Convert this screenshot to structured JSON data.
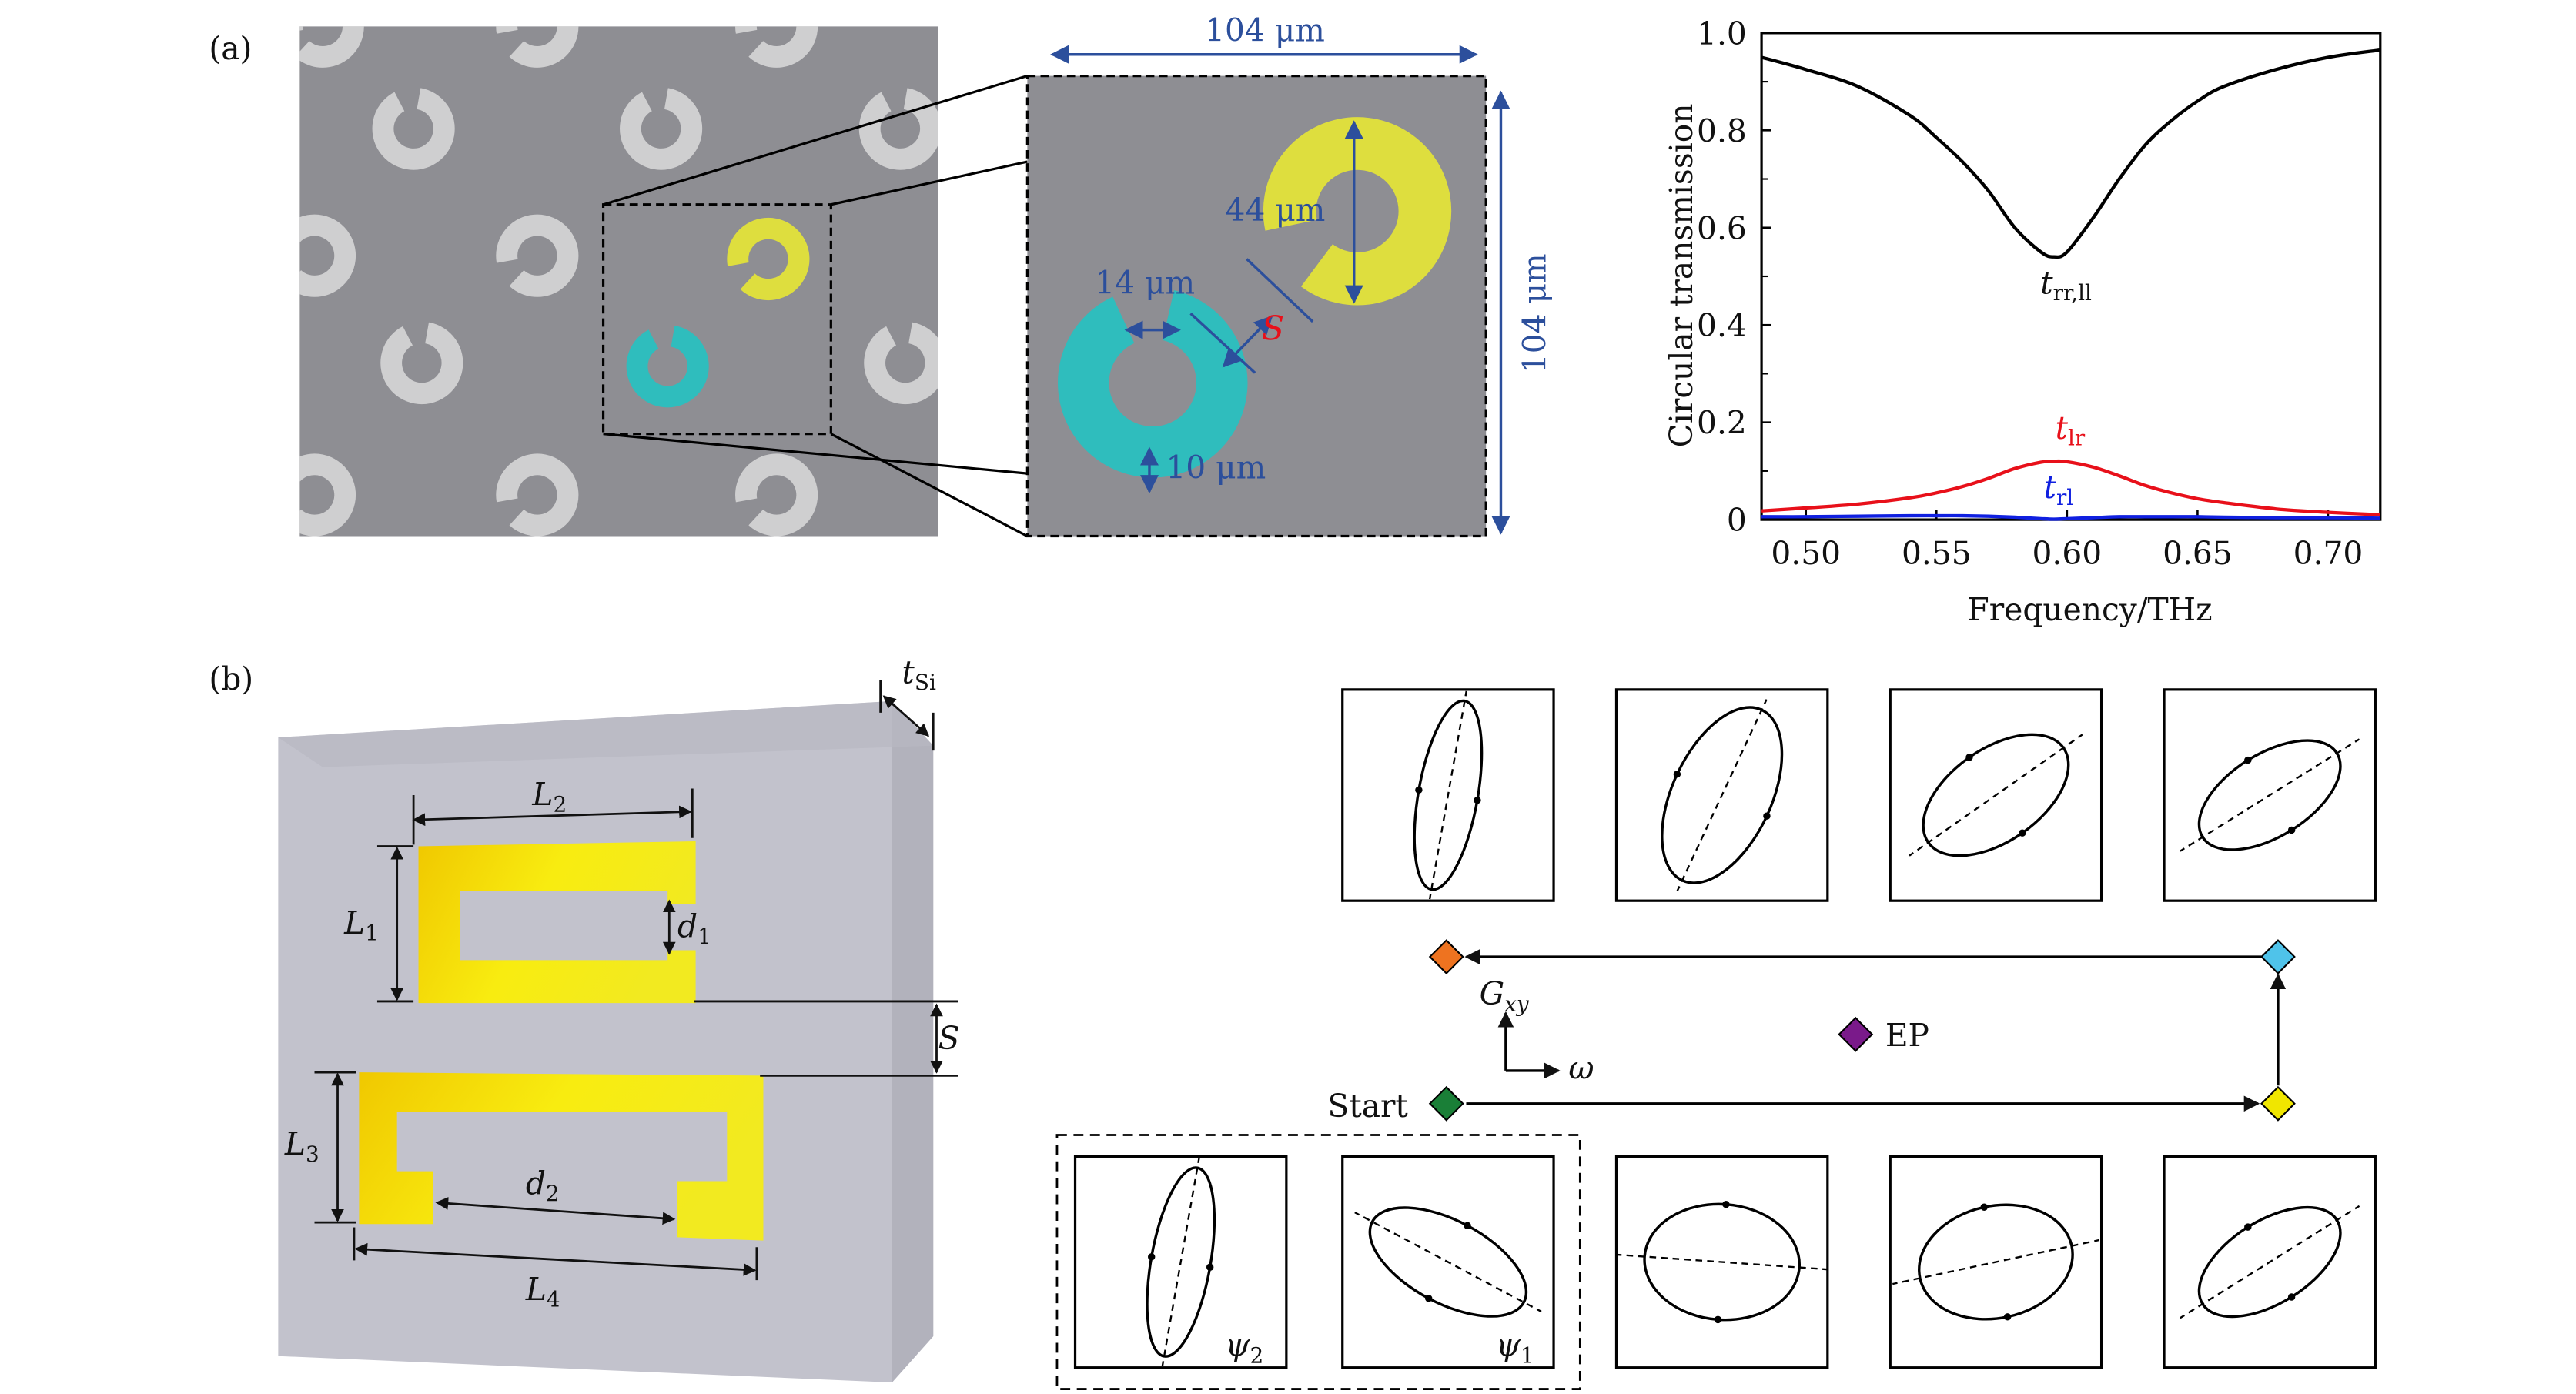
{
  "panel_a": {
    "label": "(a)",
    "width_label": "104 μm",
    "height_label": "104 μm",
    "outer_diameter_label": "44 μm",
    "gap_label": "14 μm",
    "ring_width_label": "10 μm",
    "spacing_label": "S",
    "colors": {
      "yellow": "#dede3e",
      "teal": "#2fbdbd",
      "substrate": "#8e8e93",
      "annotation": "#2c4f9c"
    }
  },
  "panel_b": {
    "label": "(b)",
    "t_si": {
      "main": "t",
      "sub": "Si"
    },
    "L1": {
      "main": "L",
      "sub": "1"
    },
    "L2": {
      "main": "L",
      "sub": "2"
    },
    "L3": {
      "main": "L",
      "sub": "3"
    },
    "L4": {
      "main": "L",
      "sub": "4"
    },
    "d1": {
      "main": "d",
      "sub": "1"
    },
    "d2": {
      "main": "d",
      "sub": "2"
    },
    "S": "S"
  },
  "polarization": {
    "start_label": "Start",
    "ep_label": "EP",
    "axis_y": {
      "main": "G",
      "sub": "xy"
    },
    "axis_x": "ω",
    "psi2": {
      "main": "ψ",
      "sub": "2"
    },
    "psi1": {
      "main": "ψ",
      "sub": "1"
    },
    "marker_colors": {
      "start": "#1a7f37",
      "yellow": "#f0e600",
      "blue": "#4fc3ea",
      "orange": "#ee7320",
      "ep": "#7a1a8a"
    }
  },
  "chart_data": {
    "type": "line",
    "title": "",
    "xlabel": "Frequency/THz",
    "ylabel": "Circular transmission",
    "xlim": [
      0.483,
      0.72
    ],
    "ylim": [
      0,
      1.0
    ],
    "xticks": [
      "0.50",
      "0.55",
      "0.60",
      "0.65",
      "0.70"
    ],
    "xtick_values": [
      0.5,
      0.55,
      0.6,
      0.65,
      0.7
    ],
    "yticks": [
      "0",
      "0.2",
      "0.4",
      "0.6",
      "0.8",
      "1.0"
    ],
    "ytick_values": [
      0,
      0.2,
      0.4,
      0.6,
      0.8,
      1.0
    ],
    "x": [
      0.483,
      0.5,
      0.52,
      0.54,
      0.55,
      0.56,
      0.57,
      0.58,
      0.59,
      0.595,
      0.6,
      0.61,
      0.62,
      0.63,
      0.64,
      0.65,
      0.66,
      0.68,
      0.7,
      0.72
    ],
    "series": [
      {
        "name": "t_rr,ll",
        "label_main": "t",
        "label_sub": "rr,ll",
        "color": "#000000",
        "values": [
          0.95,
          0.925,
          0.89,
          0.83,
          0.785,
          0.735,
          0.675,
          0.6,
          0.55,
          0.54,
          0.55,
          0.62,
          0.7,
          0.77,
          0.82,
          0.86,
          0.89,
          0.925,
          0.95,
          0.965
        ]
      },
      {
        "name": "t_lr",
        "label_main": "t",
        "label_sub": "lr",
        "color": "#e8101a",
        "values": [
          0.018,
          0.024,
          0.032,
          0.045,
          0.055,
          0.068,
          0.085,
          0.105,
          0.118,
          0.12,
          0.119,
          0.108,
          0.09,
          0.07,
          0.055,
          0.043,
          0.035,
          0.022,
          0.015,
          0.01
        ]
      },
      {
        "name": "t_rl",
        "label_main": "t",
        "label_sub": "rl",
        "color": "#1020e0",
        "values": [
          0.006,
          0.006,
          0.007,
          0.008,
          0.008,
          0.008,
          0.007,
          0.005,
          0.002,
          0.001,
          0.002,
          0.004,
          0.006,
          0.006,
          0.006,
          0.006,
          0.005,
          0.004,
          0.004,
          0.003
        ]
      }
    ],
    "grid": false,
    "legend": "inline labels"
  }
}
